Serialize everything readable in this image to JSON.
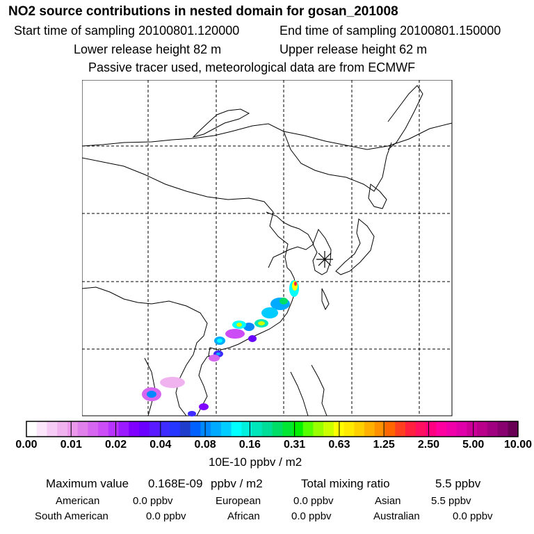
{
  "header": {
    "title": "NO2 source contributions in nested domain for gosan_201008",
    "start_sampling": "Start time of sampling 20100801.120000",
    "end_sampling": "End time of sampling 20100801.150000",
    "lower_release": "Lower release height   82 m",
    "upper_release": "Upper release height   62 m",
    "tracer_note": "Passive tracer used, meteorological data are from ECMWF"
  },
  "map": {
    "receptor_marker": "gosan receptor (asterisk)",
    "grid": "dashed lat/lon graticule"
  },
  "colorbar": {
    "tick_labels": [
      "0.00",
      "0.01",
      "0.02",
      "0.04",
      "0.08",
      "0.16",
      "0.31",
      "0.63",
      "1.25",
      "2.50",
      "5.00",
      "10.00"
    ],
    "colors": [
      "#ffffff",
      "#fbe6fb",
      "#f6ccf6",
      "#f0b3f0",
      "#eb99eb",
      "#e080eb",
      "#d666f0",
      "#cc4cf5",
      "#b833ff",
      "#9c1aff",
      "#8000ff",
      "#6a00ff",
      "#5a1aff",
      "#3d2bff",
      "#2436ff",
      "#1f3dcc",
      "#0061ff",
      "#0088ff",
      "#00aaff",
      "#00ccff",
      "#00ffff",
      "#00f0dd",
      "#00e6bb",
      "#00dd99",
      "#00dd66",
      "#00e633",
      "#00f000",
      "#55ff00",
      "#99ff00",
      "#ccff00",
      "#ffff00",
      "#ffea00",
      "#ffd000",
      "#ffb000",
      "#ff9000",
      "#ff6600",
      "#ff4020",
      "#ff2040",
      "#ff1060",
      "#ff0080",
      "#ff00a0",
      "#f000a8",
      "#e000aa",
      "#cc0099",
      "#b8008a",
      "#a00080",
      "#880070",
      "#6a0055"
    ],
    "unit": "10E-10 ppbv / m2"
  },
  "stats": {
    "max_label": "Maximum value",
    "max_value": "0.168E-09",
    "max_unit": "ppbv / m2",
    "total_label": "Total mixing ratio",
    "total_value": "5.5 ppbv",
    "regions": [
      {
        "name": "American",
        "value": "0.0 ppbv"
      },
      {
        "name": "European",
        "value": "0.0 ppbv"
      },
      {
        "name": "Asian",
        "value": "5.5 ppbv"
      },
      {
        "name": "South American",
        "value": "0.0 ppbv"
      },
      {
        "name": "African",
        "value": "0.0 ppbv"
      },
      {
        "name": "Australian",
        "value": "0.0 ppbv"
      }
    ]
  }
}
